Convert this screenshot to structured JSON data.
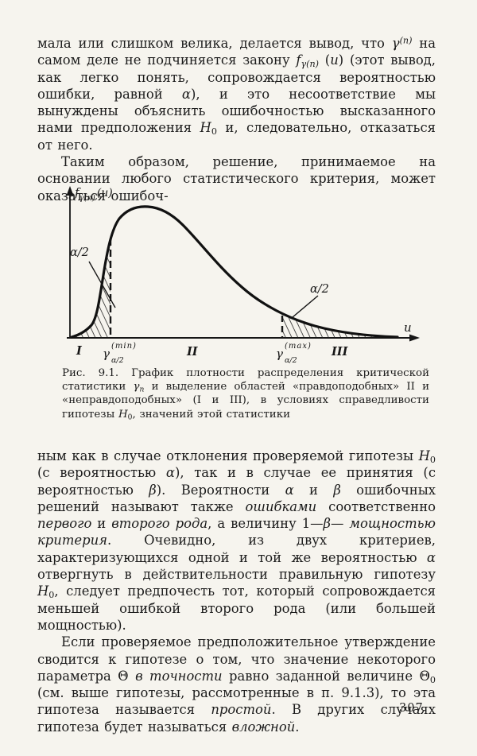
{
  "page": {
    "number": "307",
    "background_color": "#f6f4ee",
    "text_color": "#1c1c1c"
  },
  "content": {
    "top_paragraphs": [
      {
        "indent": false,
        "segments": [
          "мала или слишком велика, делается вывод, что ",
          {
            "t": "γ",
            "s": "i"
          },
          {
            "t": "(n)",
            "s": "supi"
          },
          " на самом деле не подчиняется закону ",
          {
            "t": "f",
            "s": "i"
          },
          {
            "t": "γ(n)",
            "s": "subi"
          },
          " (",
          {
            "t": "u",
            "s": "i"
          },
          ")",
          " (этот вывод, как легко понять, сопровождается вероятностью ошибки, равной ",
          {
            "t": "α",
            "s": "i"
          },
          "), и это несоответствие мы вынуждены объяснить ошибочностью высказанного нами предположения ",
          {
            "t": "H",
            "s": "i"
          },
          {
            "t": "0",
            "s": "sub"
          },
          " и, следовательно, отказаться от него."
        ]
      },
      {
        "indent": true,
        "segments": [
          "Таким образом, решение, принимаемое на основании любого статистического критерия, может оказаться ошибоч-"
        ]
      }
    ],
    "caption": [
      "Рис. 9.1. График плотности распределения критической статистики ",
      {
        "t": "γ",
        "s": "i"
      },
      {
        "t": "n",
        "s": "subi"
      },
      " и выделение областей «правдоподобных» II и «неправдоподобных» (I и III), в условиях справедливости гипотезы ",
      {
        "t": "H",
        "s": "i"
      },
      {
        "t": "0",
        "s": "sub"
      },
      ", значений этой статистики"
    ],
    "bottom_paragraphs": [
      {
        "indent": false,
        "segments": [
          "ным как в случае отклонения проверяемой гипотезы ",
          {
            "t": "H",
            "s": "i"
          },
          {
            "t": "0",
            "s": "sub"
          },
          " (с вероятностью ",
          {
            "t": "α",
            "s": "i"
          },
          "), так и в случае ее принятия (с вероятностью ",
          {
            "t": "β",
            "s": "i"
          },
          "). Вероятности ",
          {
            "t": "α",
            "s": "i"
          },
          " и ",
          {
            "t": "β",
            "s": "i"
          },
          " ошибочных решений называют также ",
          {
            "t": "ошибками",
            "s": "i"
          },
          " соответственно ",
          {
            "t": "первого",
            "s": "i"
          },
          " и ",
          {
            "t": "второго рода",
            "s": "i"
          },
          ", а величину 1—",
          {
            "t": "β",
            "s": "i"
          },
          "— ",
          {
            "t": "мощностью критерия",
            "s": "i"
          },
          ". Очевидно, из двух критериев, характеризующихся одной и той же вероятностью ",
          {
            "t": "α",
            "s": "i"
          },
          " отвергнуть в действительности правильную гипотезу ",
          {
            "t": "H",
            "s": "i"
          },
          {
            "t": "0",
            "s": "sub"
          },
          ", следует предпочесть тот, который сопровождается меньшей ошибкой второго рода (или большей мощностью)."
        ]
      },
      {
        "indent": true,
        "segments": [
          "Если проверяемое предположительное утверждение сводится к гипотезе о том, что значение некоторого параметра Θ ",
          {
            "t": "в точности",
            "s": "i"
          },
          " равно заданной величине Θ",
          {
            "t": "0",
            "s": "sub"
          },
          " (см. выше гипотезы, рассмотренные в п. 9.1.3), то эта гипотеза называется ",
          {
            "t": "простой",
            "s": "i"
          },
          ". В других случаях гипотеза будет называться ",
          {
            "t": "вложной",
            "s": "i"
          },
          "."
        ]
      }
    ]
  },
  "figure": {
    "labels": {
      "pdf_f": "f",
      "pdf_sub": "γ(n)",
      "pdf_arg": "(u)",
      "alpha_left": "α/2",
      "alpha_right": "α/2",
      "axis_u": "u",
      "region_1": "I",
      "region_2": "II",
      "region_3": "III",
      "gamma_base": "γ",
      "gamma_sub": "α/2",
      "gamma_min_sup": "(min)",
      "gamma_max_sup": "(max)"
    }
  },
  "chart_data": {
    "type": "line",
    "title": "Плотность распределения критической статистики γn при гипотезе H0",
    "xlabel": "u",
    "ylabel": "fγ(n)(u)",
    "axes_numeric": false,
    "x": [
      0,
      0.4,
      0.7,
      0.9,
      1.0,
      1.2,
      1.6,
      2.0,
      2.6,
      3.3,
      4.0,
      4.8,
      5.6,
      6.4,
      7.2,
      8.0
    ],
    "y": [
      0,
      0.02,
      0.12,
      0.45,
      0.77,
      0.95,
      1.0,
      0.93,
      0.75,
      0.52,
      0.32,
      0.17,
      0.08,
      0.04,
      0.02,
      0.01
    ],
    "critical_points": [
      "γ_α/2^(min)",
      "γ_α/2^(max)"
    ],
    "shaded_areas": [
      {
        "label": "α/2",
        "where": "left tail, u < γ_α/2^(min)",
        "style": "hatched"
      },
      {
        "label": "α/2",
        "where": "right tail, u > γ_α/2^(max)",
        "style": "hatched"
      }
    ],
    "regions": [
      {
        "label": "I",
        "range": "u < γ_α/2^(min)"
      },
      {
        "label": "II",
        "range": "γ_α/2^(min) ≤ u ≤ γ_α/2^(max)"
      },
      {
        "label": "III",
        "range": "u > γ_α/2^(max)"
      }
    ],
    "legend_position": "none",
    "grid": false
  }
}
